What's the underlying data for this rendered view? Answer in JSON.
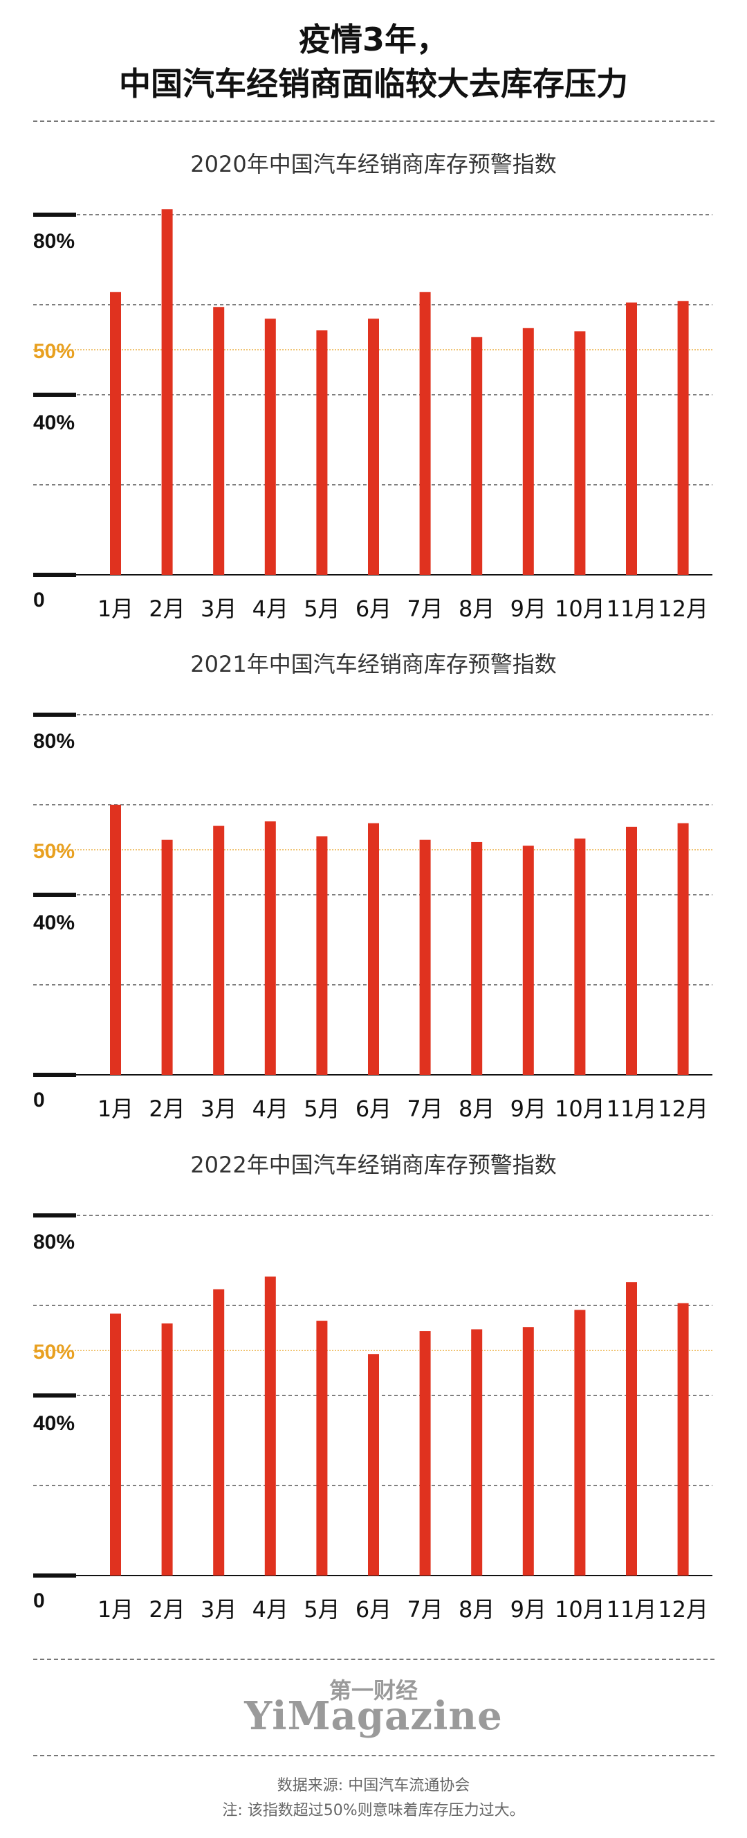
{
  "header": {
    "title_line1": "疫情3年，",
    "title_line2": "中国汽车经销商面临较大去库存压力"
  },
  "colors": {
    "bar": "#e0321f",
    "threshold": "#e8a020",
    "axis": "#111111",
    "grid": "#555555"
  },
  "chart_data": [
    {
      "type": "bar",
      "title": "2020年中国汽车经销商库存预警指数",
      "categories": [
        "1月",
        "2月",
        "3月",
        "4月",
        "5月",
        "6月",
        "7月",
        "8月",
        "9月",
        "10月",
        "11月",
        "12月"
      ],
      "values": [
        62.8,
        81.2,
        59.5,
        56.9,
        54.3,
        56.9,
        62.8,
        52.8,
        54.8,
        54.1,
        60.5,
        60.8
      ],
      "tick_labels": [
        "0",
        "40%",
        "50%",
        "80%"
      ],
      "ylim": [
        0,
        80
      ],
      "threshold": 50,
      "grid": true
    },
    {
      "type": "bar",
      "title": "2021年中国汽车经销商库存预警指数",
      "categories": [
        "1月",
        "2月",
        "3月",
        "4月",
        "5月",
        "6月",
        "7月",
        "8月",
        "9月",
        "10月",
        "11月",
        "12月"
      ],
      "values": [
        60.0,
        52.2,
        55.3,
        56.3,
        53.0,
        55.9,
        52.2,
        51.7,
        50.9,
        52.5,
        55.1,
        55.9
      ],
      "tick_labels": [
        "0",
        "40%",
        "50%",
        "80%"
      ],
      "ylim": [
        0,
        80
      ],
      "threshold": 50,
      "grid": true
    },
    {
      "type": "bar",
      "title": "2022年中国汽车经销商库存预警指数",
      "categories": [
        "1月",
        "2月",
        "3月",
        "4月",
        "5月",
        "6月",
        "7月",
        "8月",
        "9月",
        "10月",
        "11月",
        "12月"
      ],
      "values": [
        58.2,
        56.0,
        63.6,
        66.4,
        56.6,
        49.2,
        54.3,
        54.7,
        55.2,
        59.0,
        65.2,
        60.5
      ],
      "tick_labels": [
        "0",
        "40%",
        "50%",
        "80%"
      ],
      "ylim": [
        0,
        80
      ],
      "threshold": 50,
      "grid": true
    }
  ],
  "brand": {
    "chinese": "第一财经",
    "english": "YiMagazine"
  },
  "footer": {
    "source": "数据来源: 中国汽车流通协会",
    "note": "注: 该指数超过50%则意味着库存压力过大。"
  }
}
